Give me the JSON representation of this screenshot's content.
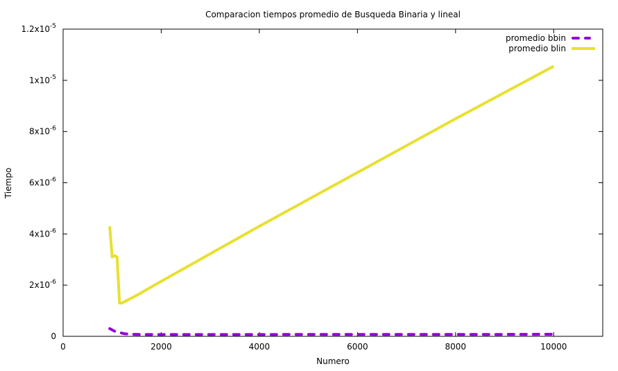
{
  "chart_data": {
    "type": "line",
    "title": "Comparacion tiempos promedio de Busqueda Binaria y lineal",
    "xlabel": "Numero",
    "ylabel": "Tiempo",
    "xlim": [
      0,
      11000
    ],
    "ylim": [
      0,
      1.2e-05
    ],
    "xticks": [
      0,
      2000,
      4000,
      6000,
      8000,
      10000
    ],
    "xtick_labels": [
      "0",
      "2000",
      "4000",
      "6000",
      "8000",
      "10000"
    ],
    "yticks": [
      0,
      2e-06,
      4e-06,
      6e-06,
      8e-06,
      1e-05,
      1.2e-05
    ],
    "ytick_labels": [
      {
        "mantissa": "0",
        "exp": ""
      },
      {
        "mantissa": "2x10",
        "exp": "-6"
      },
      {
        "mantissa": "4x10",
        "exp": "-6"
      },
      {
        "mantissa": "6x10",
        "exp": "-6"
      },
      {
        "mantissa": "8x10",
        "exp": "-6"
      },
      {
        "mantissa": "1x10",
        "exp": "-5"
      },
      {
        "mantissa": "1.2x10",
        "exp": "-5"
      }
    ],
    "grid": false,
    "legend_position": "top-right",
    "series": [
      {
        "name": "promedio bbin",
        "color": "#9400d3",
        "dashed": true,
        "x": [
          950,
          1050,
          1150,
          1250,
          1400,
          1600,
          2000,
          3000,
          4000,
          5000,
          6000,
          7000,
          8000,
          9000,
          10000
        ],
        "y": [
          3e-07,
          2e-07,
          1.5e-07,
          1e-07,
          8e-08,
          7e-08,
          7e-08,
          7e-08,
          7e-08,
          7.5e-08,
          7.5e-08,
          7.5e-08,
          7.5e-08,
          7.5e-08,
          8e-08
        ]
      },
      {
        "name": "promedio blin",
        "color": "#e8e030",
        "dashed": false,
        "x": [
          950,
          1000,
          1050,
          1100,
          1150,
          1200,
          1300,
          1500,
          2000,
          4000,
          6000,
          8000,
          10000
        ],
        "y": [
          4.3e-06,
          3.1e-06,
          3.15e-06,
          3.1e-06,
          1.3e-06,
          1.3e-06,
          1.4e-06,
          1.6e-06,
          2.15e-06,
          4.3e-06,
          6.4e-06,
          8.5e-06,
          1.055e-05
        ]
      }
    ]
  }
}
